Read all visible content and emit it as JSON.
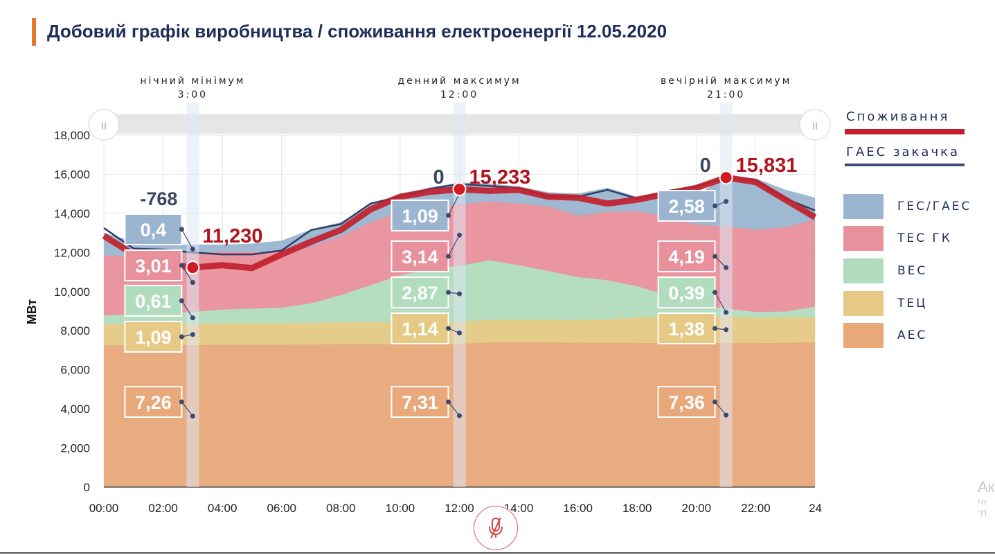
{
  "title": "Добовий графік виробництва / споживання електроенергії 12.05.2020",
  "colors": {
    "aes": "#e8a87a",
    "tec": "#e5c985",
    "ves": "#b1dcbd",
    "tes": "#e8909c",
    "ges": "#9bb5d1",
    "consumption": "#c1202c",
    "gaes_pump": "#2e3d66",
    "title_bar": "#e8772e"
  },
  "legend_lines": [
    {
      "label": "Споживання",
      "color": "#c1202c"
    },
    {
      "label": "ГАЕС закачка",
      "color": "#3a4a70"
    }
  ],
  "legend_boxes": [
    {
      "label": "ГЕС/ГАЕС",
      "color": "#9bb5d1"
    },
    {
      "label": "ТЕС ГК",
      "color": "#e8909c"
    },
    {
      "label": "ВЕС",
      "color": "#b1dcbd"
    },
    {
      "label": "ТЕЦ",
      "color": "#e5c985"
    },
    {
      "label": "АЕС",
      "color": "#e8a87a"
    }
  ],
  "markers": [
    {
      "label": "нічний мінімум",
      "time": "3:00",
      "hour": 3,
      "consumption_label": "11,230",
      "pump_label": "-768",
      "values": [
        "0,4",
        "3,01",
        "0,61",
        "1,09",
        "7,26"
      ]
    },
    {
      "label": "денний максимум",
      "time": "12:00",
      "hour": 12,
      "consumption_label": "15,233",
      "pump_label": "0",
      "values": [
        "1,09",
        "3,14",
        "2,87",
        "1,14",
        "7,31"
      ]
    },
    {
      "label": "вечірній максимум",
      "time": "21:00",
      "hour": 21,
      "consumption_label": "15,831",
      "pump_label": "0",
      "values": [
        "2,58",
        "4,19",
        "0,39",
        "1,38",
        "7,36"
      ]
    }
  ],
  "side_text": {
    "main": "Ак",
    "line1": "Чт",
    "line2": "\"П"
  },
  "mic_icon": "mic-off-icon",
  "chart_data": {
    "type": "area",
    "stacked": true,
    "title": "Добовий графік виробництва / споживання електроенергії 12.05.2020",
    "ylabel": "МВт",
    "xlabel": "",
    "x": [
      0,
      1,
      2,
      3,
      4,
      5,
      6,
      7,
      8,
      9,
      10,
      11,
      12,
      13,
      14,
      15,
      16,
      17,
      18,
      19,
      20,
      21,
      22,
      23,
      24
    ],
    "x_tick_labels": [
      "00:00",
      "02:00",
      "04:00",
      "06:00",
      "08:00",
      "10:00",
      "12:00",
      "14:00",
      "16:00",
      "18:00",
      "20:00",
      "22:00",
      "24"
    ],
    "y_ticks": [
      0,
      2000,
      4000,
      6000,
      8000,
      10000,
      12000,
      14000,
      16000,
      18000
    ],
    "y_tick_labels": [
      "0",
      "2,000",
      "4,000",
      "6,000",
      "8,000",
      "10,000",
      "12,000",
      "14,000",
      "16,000",
      "18,000"
    ],
    "ylim": [
      0,
      18000
    ],
    "xlim": [
      0,
      24
    ],
    "grid": true,
    "legend_position": "right",
    "series": [
      {
        "name": "АЕС",
        "values": [
          7250,
          7250,
          7250,
          7260,
          7280,
          7280,
          7280,
          7290,
          7300,
          7300,
          7300,
          7310,
          7310,
          7400,
          7400,
          7400,
          7380,
          7380,
          7370,
          7370,
          7360,
          7360,
          7360,
          7380,
          7400
        ]
      },
      {
        "name": "ТЕЦ",
        "values": [
          1080,
          1080,
          1090,
          1090,
          1100,
          1100,
          1100,
          1110,
          1120,
          1130,
          1130,
          1140,
          1140,
          1150,
          1150,
          1150,
          1160,
          1200,
          1300,
          1350,
          1360,
          1380,
          1300,
          1300,
          1280
        ]
      },
      {
        "name": "ВЕС",
        "values": [
          450,
          500,
          550,
          610,
          700,
          750,
          800,
          1000,
          1400,
          1900,
          2400,
          2700,
          2870,
          3050,
          2800,
          2500,
          2200,
          2000,
          1600,
          1100,
          600,
          390,
          300,
          300,
          550
        ]
      },
      {
        "name": "ТЕС ГК",
        "values": [
          3050,
          3000,
          3000,
          3010,
          2950,
          2900,
          2850,
          2900,
          3000,
          3200,
          3250,
          3150,
          3140,
          3000,
          3150,
          3300,
          3150,
          3500,
          3850,
          4000,
          4100,
          4190,
          4200,
          4300,
          4450
        ]
      },
      {
        "name": "ГЕС/ГАЕС",
        "values": [
          1150,
          700,
          500,
          400,
          350,
          400,
          550,
          850,
          700,
          900,
          900,
          1000,
          1090,
          900,
          850,
          700,
          1100,
          1200,
          700,
          1100,
          1450,
          2580,
          2600,
          1900,
          1100
        ]
      }
    ],
    "consumption": {
      "name": "Споживання",
      "values": [
        12850,
        11900,
        11400,
        11230,
        11350,
        11200,
        11900,
        12550,
        13150,
        14200,
        14850,
        15100,
        15233,
        15150,
        15200,
        14850,
        14800,
        14500,
        14700,
        15000,
        15300,
        15831,
        15600,
        14700,
        13800
      ]
    },
    "gaes_pump": {
      "name": "ГАЕС закачка",
      "values": [
        13250,
        12200,
        12150,
        11998,
        11900,
        11900,
        12100,
        13150,
        13450,
        14500,
        14850,
        15250,
        15500,
        15400,
        15300,
        14850,
        14850,
        15200,
        14750,
        15150,
        15350,
        15831,
        15700,
        14750,
        14150
      ]
    },
    "annotations": [
      {
        "x": 3,
        "consumption": "11,230",
        "pump": "-768"
      },
      {
        "x": 12,
        "consumption": "15,233",
        "pump": "0"
      },
      {
        "x": 21,
        "consumption": "15,831",
        "pump": "0"
      }
    ]
  }
}
